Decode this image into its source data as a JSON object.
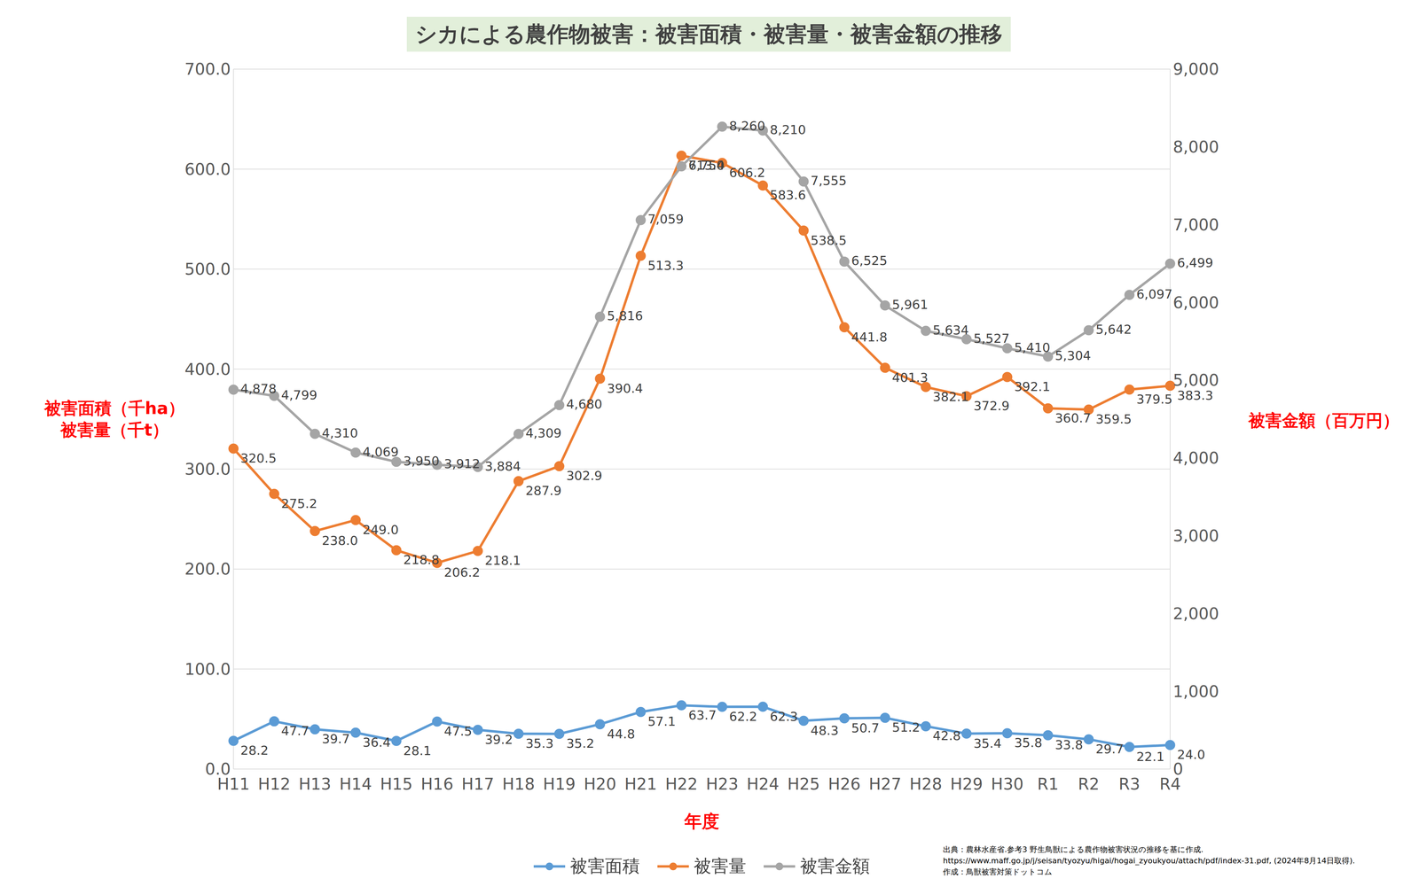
{
  "chart_data": {
    "type": "line",
    "title": "シカによる農作物被害：被害面積・被害量・被害金額の推移",
    "xlabel": "年度",
    "ylabel": [
      "被害面積（千ha）",
      "被害量（千t）"
    ],
    "y2label": "被害金額（百万円）",
    "categories": [
      "H11",
      "H12",
      "H13",
      "H14",
      "H15",
      "H16",
      "H17",
      "H18",
      "H19",
      "H20",
      "H21",
      "H22",
      "H23",
      "H24",
      "H25",
      "H26",
      "H27",
      "H28",
      "H29",
      "H30",
      "R1",
      "R2",
      "R3",
      "R4"
    ],
    "ylim": [
      0,
      700
    ],
    "yticks": [
      {
        "value": 0,
        "label": "0.0"
      },
      {
        "value": 100,
        "label": "100.0"
      },
      {
        "value": 200,
        "label": "200.0"
      },
      {
        "value": 300,
        "label": "300.0"
      },
      {
        "value": 400,
        "label": "400.0"
      },
      {
        "value": 500,
        "label": "500.0"
      },
      {
        "value": 600,
        "label": "600.0"
      },
      {
        "value": 700,
        "label": "700.0"
      }
    ],
    "y2lim": [
      0,
      9000
    ],
    "y2ticks": [
      0,
      {
        "value": 1000,
        "label": "1,000"
      },
      {
        "value": 2000,
        "label": "2,000"
      },
      {
        "value": 3000,
        "label": "3,000"
      },
      {
        "value": 4000,
        "label": "4,000"
      },
      {
        "value": 5000,
        "label": "5,000"
      },
      {
        "value": 6000,
        "label": "6,000"
      },
      {
        "value": 7000,
        "label": "7,000"
      },
      {
        "value": 8000,
        "label": "8,000"
      },
      {
        "value": 9000,
        "label": "9,000"
      }
    ],
    "grid": true,
    "legend": "bottom",
    "data_labels": true,
    "series": [
      {
        "name": "被害面積",
        "color": "#5b9bd5",
        "marker": "circle",
        "line_style": "solid",
        "values": [
          28.2,
          47.7,
          39.7,
          36.4,
          28.1,
          47.5,
          39.2,
          35.3,
          35.2,
          44.8,
          57.1,
          63.7,
          62.2,
          62.3,
          48.3,
          50.7,
          51.2,
          42.8,
          35.4,
          35.8,
          33.8,
          29.7,
          22.1,
          24.0
        ],
        "value_labels": [
          "28.2",
          "47.7",
          "39.7",
          "36.4",
          "28.1",
          "47.5",
          "39.2",
          "35.3",
          "35.2",
          "44.8",
          "57.1",
          "63.7",
          "62.2",
          "62.3",
          "48.3",
          "50.7",
          "51.2",
          "42.8",
          "35.4",
          "35.8",
          "33.8",
          "29.7",
          "22.1",
          "24.0"
        ]
      },
      {
        "name": "被害量",
        "color": "#ed7d31",
        "marker": "circle",
        "line_style": "solid",
        "values": [
          320.5,
          275.2,
          238.0,
          249.0,
          218.8,
          206.2,
          218.1,
          287.9,
          302.9,
          390.4,
          513.3,
          613.4,
          606.2,
          583.6,
          538.5,
          441.8,
          401.3,
          382.1,
          372.9,
          392.1,
          360.7,
          359.5,
          379.5,
          383.3
        ],
        "value_labels": [
          "320.5",
          "275.2",
          "238.0",
          "249.0",
          "218.8",
          "206.2",
          "218.1",
          "287.9",
          "302.9",
          "390.4",
          "513.3",
          "613.4",
          "606.2",
          "583.6",
          "538.5",
          "441.8",
          "401.3",
          "382.1",
          "372.9",
          "392.1",
          "360.7",
          "359.5",
          "379.5",
          "383.3"
        ]
      },
      {
        "name": "被害金額",
        "color": "#a5a5a5",
        "marker": "circle",
        "line_style": "solid",
        "axis": "y2",
        "values": [
          4878,
          4799,
          4310,
          4069,
          3950,
          3912,
          3884,
          4309,
          4680,
          5816,
          7059,
          7750,
          8260,
          8210,
          7555,
          6525,
          5961,
          5634,
          5527,
          5410,
          5304,
          5642,
          6097,
          6499
        ],
        "value_labels": [
          "4,878",
          "4,799",
          "4,310",
          "4,069",
          "3,950",
          "3,912",
          "3,884",
          "4,309",
          "4,680",
          "5,816",
          "7,059",
          "7,750",
          "8,260",
          "8,210",
          "7,555",
          "6,525",
          "5,961",
          "5,634",
          "5,527",
          "5,410",
          "5,304",
          "5,642",
          "6,097",
          "6,499"
        ]
      }
    ],
    "annotations": [
      "出典：農林水産省.参考3 野生鳥獣による農作物被害状況の推移を基に作成.",
      "https://www.maff.go.jp/j/seisan/tyozyu/higai/hogai_zyoukyou/attach/pdf/index-31.pdf, (2024年8月14日取得).",
      "作成：鳥獣被害対策ドットコム"
    ]
  }
}
